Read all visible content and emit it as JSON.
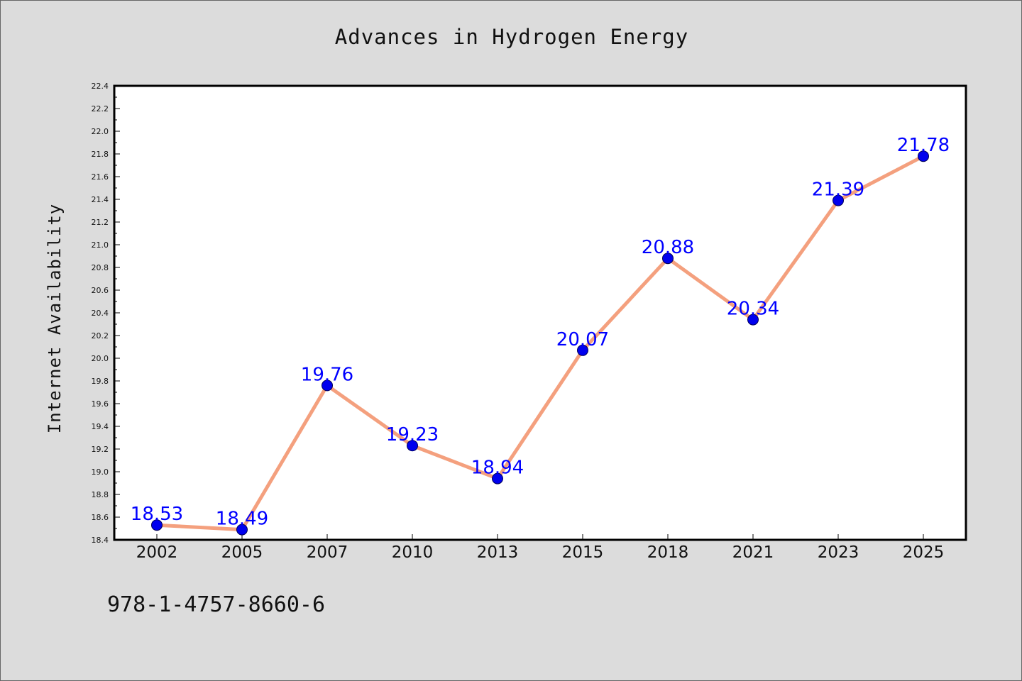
{
  "chart_data": {
    "type": "line",
    "title": "Advances in Hydrogen Energy",
    "xlabel": "",
    "ylabel": "Internet Availability",
    "categories": [
      "2002",
      "2005",
      "2007",
      "2010",
      "2013",
      "2015",
      "2018",
      "2021",
      "2023",
      "2025"
    ],
    "series": [
      {
        "values": [
          18.53,
          18.49,
          19.76,
          19.23,
          18.94,
          20.07,
          20.88,
          20.34,
          21.39,
          21.78
        ],
        "line_color": "#f4a07e",
        "marker_color": "#0000ee"
      }
    ],
    "data_labels": [
      "18.53",
      "18.49",
      "19.76",
      "19.23",
      "18.94",
      "20.07",
      "20.88",
      "20.34",
      "21.39",
      "21.78"
    ],
    "ylim": [
      18.4,
      22.4
    ],
    "yticks": [
      "18.4",
      "18.6",
      "18.8",
      "19.0",
      "19.2",
      "19.4",
      "19.6",
      "19.8",
      "20.0",
      "20.2",
      "20.4",
      "20.6",
      "20.8",
      "21.0",
      "21.2",
      "21.4",
      "21.6",
      "21.8",
      "22.0",
      "22.2",
      "22.4"
    ],
    "grid": false,
    "legend": "none"
  },
  "footnote": "978-1-4757-8660-6",
  "colors": {
    "background": "#dcdcdc",
    "plot_area": "#ffffff",
    "label_color": "#0000ff"
  }
}
